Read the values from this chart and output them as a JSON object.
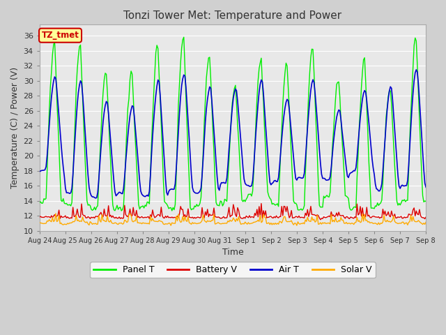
{
  "title": "Tonzi Tower Met: Temperature and Power",
  "xlabel": "Time",
  "ylabel": "Temperature (C) / Power (V)",
  "ylim": [
    10,
    37
  ],
  "yticks": [
    10,
    12,
    14,
    16,
    18,
    20,
    22,
    24,
    26,
    28,
    30,
    32,
    34,
    36
  ],
  "legend_labels": [
    "Panel T",
    "Battery V",
    "Air T",
    "Solar V"
  ],
  "legend_colors": [
    "#00ee00",
    "#dd0000",
    "#0000cc",
    "#ffaa00"
  ],
  "annotation_text": "TZ_tmet",
  "annotation_color": "#cc0000",
  "annotation_bg": "#ffff99",
  "xtick_labels": [
    "Aug 24",
    "Aug 25",
    "Aug 26",
    "Aug 27",
    "Aug 28",
    "Aug 29",
    "Aug 30",
    "Aug 31",
    "Sep 1",
    "Sep 2",
    "Sep 3",
    "Sep 4",
    "Sep 5",
    "Sep 6",
    "Sep 7",
    "Sep 8"
  ]
}
